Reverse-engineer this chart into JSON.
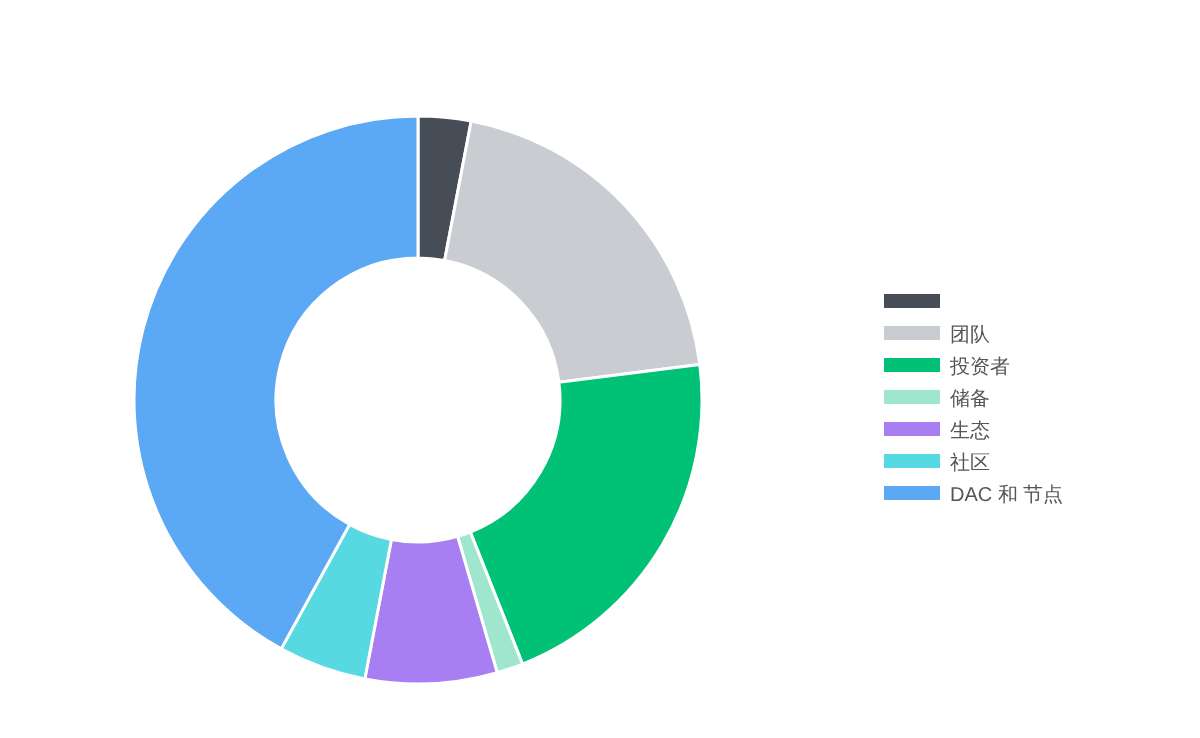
{
  "chart_data": {
    "type": "donut",
    "categories": [
      null,
      "团队",
      "投资者",
      "储备",
      "生态",
      "社区",
      "DAC 和 节点"
    ],
    "values": [
      3,
      20,
      21,
      1.5,
      7.5,
      5,
      42
    ],
    "colors": [
      "#474d57",
      "#c9ccd1",
      "#00c176",
      "#a0e6cf",
      "#a77ff2",
      "#56d9e0",
      "#5ba8f5"
    ],
    "legend": "right"
  }
}
